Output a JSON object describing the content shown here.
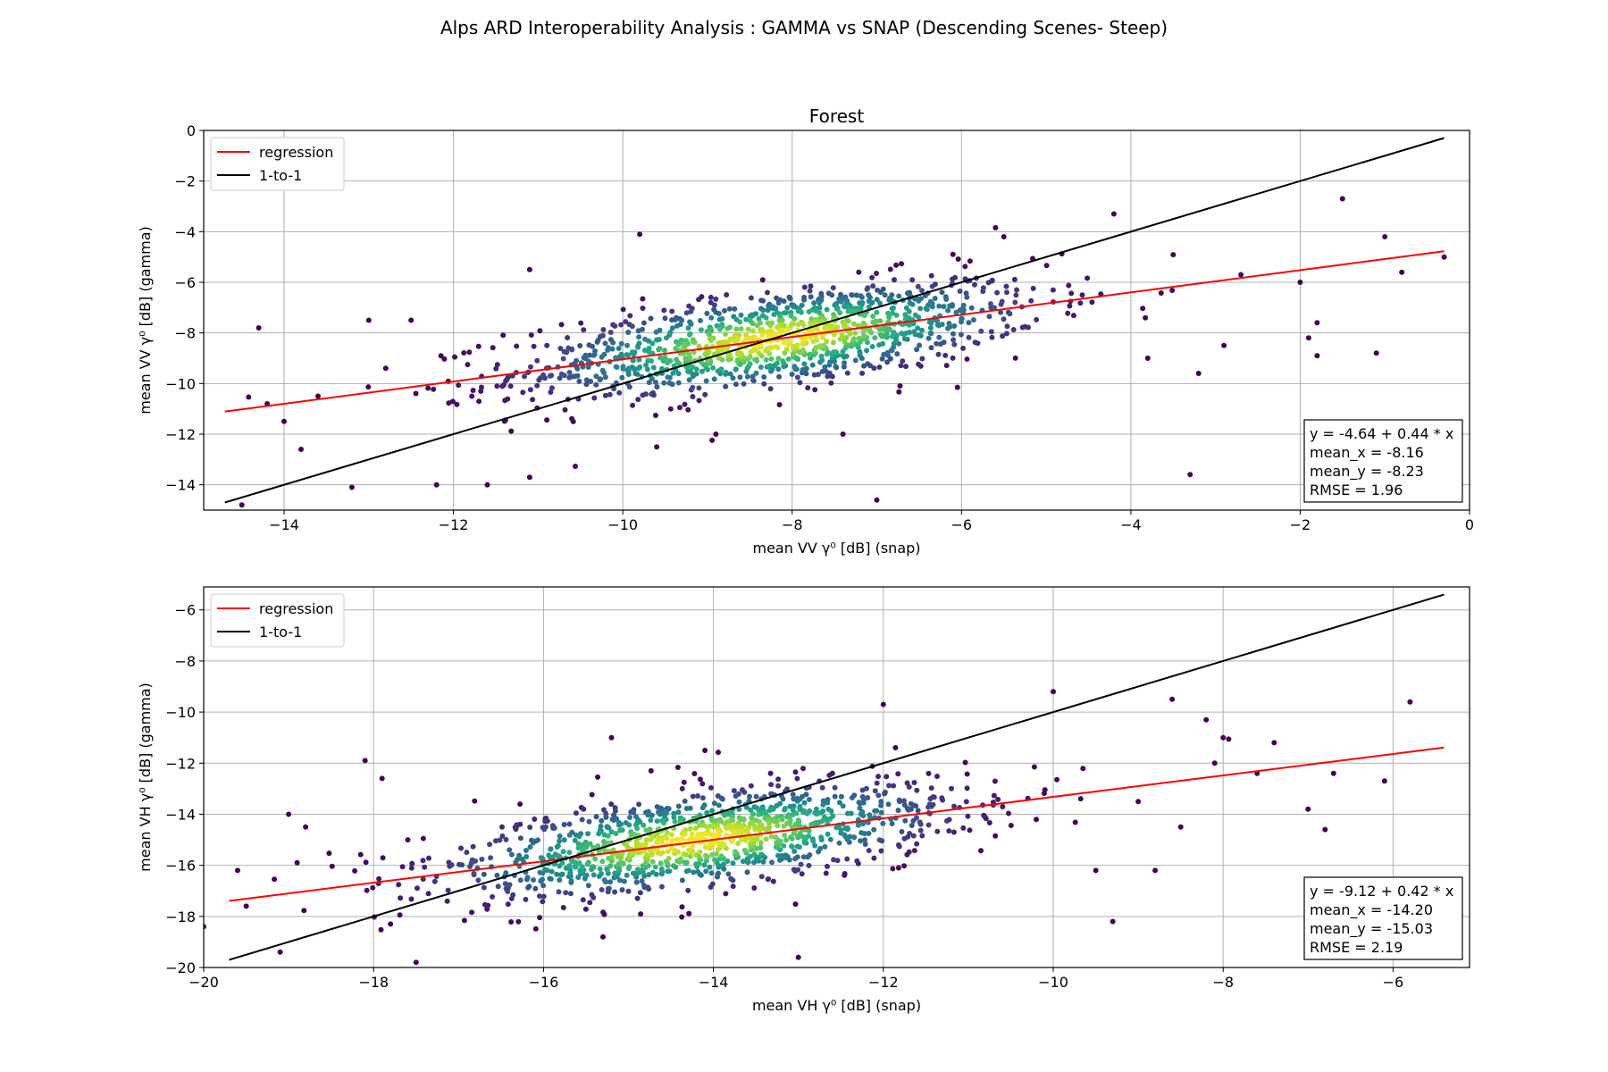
{
  "figure": {
    "suptitle": "Alps ARD Interoperability Analysis : GAMMA vs SNAP (Descending Scenes- Steep)"
  },
  "chart_data": [
    {
      "type": "scatter",
      "title": "Forest",
      "xlabel": "mean VV γ⁰ [dB] (snap)",
      "ylabel": "mean VV γ⁰ [dB] (gamma)",
      "xlim": [
        -14.95,
        0
      ],
      "ylim": [
        -15,
        0
      ],
      "xticks": [
        -14,
        -12,
        -10,
        -8,
        -6,
        -4,
        -2,
        0
      ],
      "xtick_labels": [
        "−14",
        "−12",
        "−10",
        "−8",
        "−6",
        "−4",
        "−2",
        "0"
      ],
      "yticks": [
        0,
        -2,
        -4,
        -6,
        -8,
        -10,
        -12,
        -14
      ],
      "ytick_labels": [
        "0",
        "−2",
        "−4",
        "−6",
        "−8",
        "−10",
        "−12",
        "−14"
      ],
      "grid": true,
      "legend": {
        "position": "upper-left",
        "entries": [
          "regression",
          "1-to-1"
        ]
      },
      "regression": {
        "intercept": -4.64,
        "slope": 0.44,
        "x_range": [
          -14.7,
          -0.3
        ],
        "color": "#ff0000"
      },
      "one_to_one": {
        "x_range": [
          -14.7,
          -0.3
        ],
        "color": "#000000"
      },
      "stats": [
        "y = -4.64 + 0.44 * x",
        "mean_x = -8.16",
        "mean_y = -8.23",
        "RMSE = 1.96"
      ],
      "point_cloud": {
        "n_points": 1200,
        "mean_x": -8.16,
        "mean_y": -8.23,
        "slope": 0.44,
        "colormap": "viridis"
      },
      "outliers": [
        [
          -14.5,
          -14.8
        ],
        [
          -14.3,
          -7.8
        ],
        [
          -14.2,
          -10.8
        ],
        [
          -14.0,
          -11.5
        ],
        [
          -13.8,
          -12.6
        ],
        [
          -13.6,
          -10.5
        ],
        [
          -13.2,
          -14.1
        ],
        [
          -13.0,
          -7.5
        ],
        [
          -12.8,
          -9.4
        ],
        [
          -12.5,
          -7.5
        ],
        [
          -12.2,
          -14.0
        ],
        [
          -11.6,
          -14.0
        ],
        [
          -11.1,
          -13.7
        ],
        [
          -11.1,
          -5.5
        ],
        [
          -9.8,
          -4.1
        ],
        [
          -8.9,
          -12.0
        ],
        [
          -7.0,
          -14.6
        ],
        [
          -5.5,
          -4.2
        ],
        [
          -4.2,
          -3.3
        ],
        [
          -3.3,
          -13.6
        ],
        [
          -3.2,
          -9.6
        ],
        [
          -2.7,
          -5.7
        ],
        [
          -1.8,
          -8.9
        ],
        [
          -1.8,
          -7.6
        ],
        [
          -1.5,
          -2.7
        ],
        [
          -1.1,
          -8.8
        ],
        [
          -1.0,
          -4.2
        ],
        [
          -0.8,
          -5.6
        ],
        [
          -0.3,
          -5.0
        ],
        [
          -2.0,
          -6.0
        ],
        [
          -3.8,
          -9.0
        ],
        [
          -2.9,
          -8.5
        ],
        [
          -1.9,
          -8.2
        ],
        [
          -6.1,
          -4.9
        ],
        [
          -7.4,
          -12.0
        ],
        [
          -9.6,
          -12.5
        ]
      ]
    },
    {
      "type": "scatter",
      "title": "",
      "xlabel": "mean VH γ⁰ [dB] (snap)",
      "ylabel": "mean VH γ⁰ [dB] (gamma)",
      "xlim": [
        -20,
        -5.1
      ],
      "ylim": [
        -20,
        -5.1
      ],
      "xticks": [
        -20,
        -18,
        -16,
        -14,
        -12,
        -10,
        -8,
        -6
      ],
      "xtick_labels": [
        "−20",
        "−18",
        "−16",
        "−14",
        "−12",
        "−10",
        "−8",
        "−6"
      ],
      "yticks": [
        -6,
        -8,
        -10,
        -12,
        -14,
        -16,
        -18,
        -20
      ],
      "ytick_labels": [
        "−6",
        "−8",
        "−10",
        "−12",
        "−14",
        "−16",
        "−18",
        "−20"
      ],
      "grid": true,
      "legend": {
        "position": "upper-left",
        "entries": [
          "regression",
          "1-to-1"
        ]
      },
      "regression": {
        "intercept": -9.12,
        "slope": 0.42,
        "x_range": [
          -19.7,
          -5.4
        ],
        "color": "#ff0000"
      },
      "one_to_one": {
        "x_range": [
          -19.7,
          -5.4
        ],
        "color": "#000000"
      },
      "stats": [
        "y = -9.12 + 0.42 * x",
        "mean_x = -14.20",
        "mean_y = -15.03",
        "RMSE = 2.19"
      ],
      "point_cloud": {
        "n_points": 1200,
        "mean_x": -14.2,
        "mean_y": -15.03,
        "slope": 0.42,
        "colormap": "viridis"
      },
      "outliers": [
        [
          -20.0,
          -18.4
        ],
        [
          -19.6,
          -16.2
        ],
        [
          -19.5,
          -17.6
        ],
        [
          -19.1,
          -19.4
        ],
        [
          -19.0,
          -14.0
        ],
        [
          -18.9,
          -15.9
        ],
        [
          -18.8,
          -14.5
        ],
        [
          -18.1,
          -11.9
        ],
        [
          -17.9,
          -12.6
        ],
        [
          -17.8,
          -18.3
        ],
        [
          -17.5,
          -19.8
        ],
        [
          -15.2,
          -11.0
        ],
        [
          -14.1,
          -11.5
        ],
        [
          -13.0,
          -19.6
        ],
        [
          -12.0,
          -9.7
        ],
        [
          -10.0,
          -9.2
        ],
        [
          -9.3,
          -18.2
        ],
        [
          -9.0,
          -13.5
        ],
        [
          -8.6,
          -9.5
        ],
        [
          -8.5,
          -14.5
        ],
        [
          -8.2,
          -10.3
        ],
        [
          -8.0,
          -11.0
        ],
        [
          -7.6,
          -12.4
        ],
        [
          -7.4,
          -11.2
        ],
        [
          -7.0,
          -13.8
        ],
        [
          -6.8,
          -14.6
        ],
        [
          -6.7,
          -12.4
        ],
        [
          -5.8,
          -9.6
        ],
        [
          -6.1,
          -12.7
        ],
        [
          -8.1,
          -12.0
        ],
        [
          -8.8,
          -16.2
        ],
        [
          -9.5,
          -16.2
        ],
        [
          -10.2,
          -14.2
        ],
        [
          -15.3,
          -18.8
        ]
      ]
    }
  ]
}
